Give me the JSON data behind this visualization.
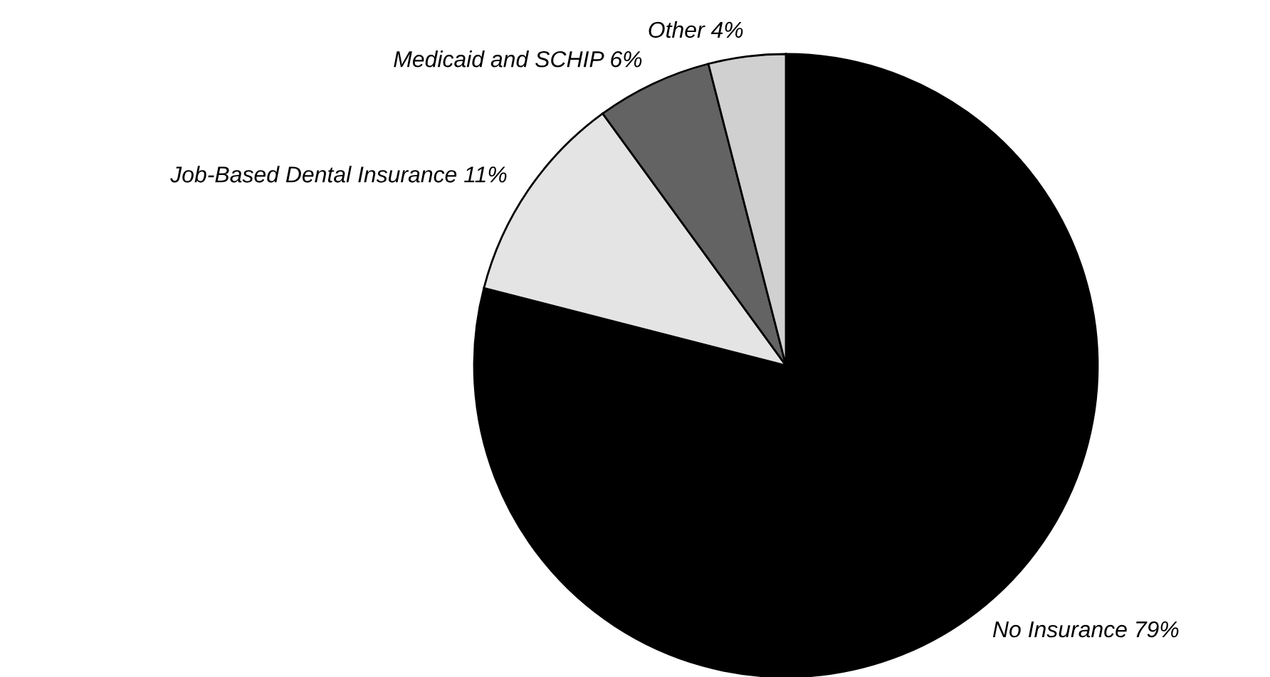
{
  "chart_data": {
    "type": "pie",
    "categories": [
      "No Insurance",
      "Job-Based Dental Insurance",
      "Medicaid and SCHIP",
      "Other"
    ],
    "values": [
      79,
      11,
      6,
      4
    ],
    "value_labels": [
      "79%",
      "11%",
      "6%",
      "4%"
    ],
    "colors": [
      "#000000",
      "#e4e4e4",
      "#636363",
      "#d0d0d0"
    ]
  }
}
